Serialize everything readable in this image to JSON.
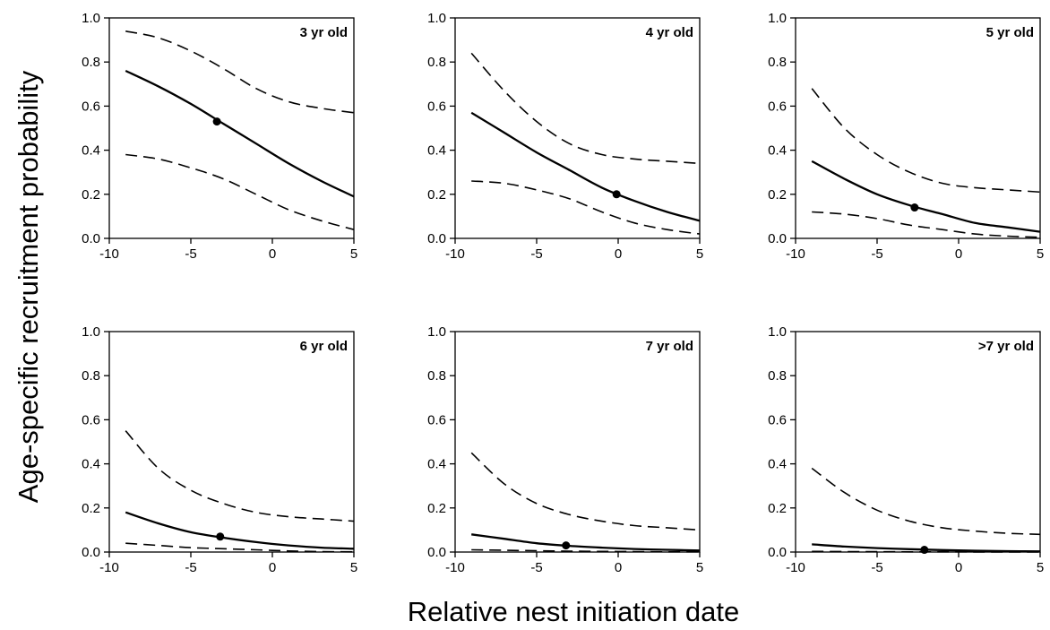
{
  "figure": {
    "ylabel": "Age-specific recruitment probability",
    "xlabel": "Relative nest initiation date"
  },
  "chart_data": [
    {
      "type": "line",
      "title": "3 yr old",
      "xlim": [
        -10,
        5
      ],
      "ylim": [
        0,
        1
      ],
      "xticks": [
        -10,
        -5,
        0,
        5
      ],
      "yticks": [
        0,
        0.2,
        0.4,
        0.6,
        0.8,
        1
      ],
      "xtick_labels": [
        "-10",
        "-5",
        "0",
        "5"
      ],
      "ytick_labels": [
        "0.0",
        "0.2",
        "0.4",
        "0.6",
        "0.8",
        "1.0"
      ],
      "series": [
        {
          "style": "solid",
          "x": [
            -9,
            -7,
            -5,
            -3,
            -1,
            1,
            3,
            5
          ],
          "y": [
            0.76,
            0.69,
            0.61,
            0.52,
            0.43,
            0.34,
            0.26,
            0.19
          ]
        },
        {
          "style": "dashed",
          "x": [
            -9,
            -7,
            -5,
            -3,
            -1,
            1,
            3,
            5
          ],
          "y": [
            0.94,
            0.91,
            0.85,
            0.77,
            0.68,
            0.62,
            0.59,
            0.57
          ]
        },
        {
          "style": "dashed",
          "x": [
            -9,
            -7,
            -5,
            -3,
            -1,
            1,
            3,
            5
          ],
          "y": [
            0.38,
            0.36,
            0.32,
            0.27,
            0.2,
            0.13,
            0.08,
            0.04
          ]
        },
        {
          "style": "point",
          "x": [
            -3.4
          ],
          "y": [
            0.53
          ]
        }
      ]
    },
    {
      "type": "line",
      "title": "4 yr old",
      "xlim": [
        -10,
        5
      ],
      "ylim": [
        0,
        1
      ],
      "xticks": [
        -10,
        -5,
        0,
        5
      ],
      "yticks": [
        0,
        0.2,
        0.4,
        0.6,
        0.8,
        1
      ],
      "xtick_labels": [
        "-10",
        "-5",
        "0",
        "5"
      ],
      "ytick_labels": [
        "0.0",
        "0.2",
        "0.4",
        "0.6",
        "0.8",
        "1.0"
      ],
      "series": [
        {
          "style": "solid",
          "x": [
            -9,
            -7,
            -5,
            -3,
            -1,
            1,
            3,
            5
          ],
          "y": [
            0.57,
            0.48,
            0.39,
            0.31,
            0.23,
            0.17,
            0.12,
            0.08
          ]
        },
        {
          "style": "dashed",
          "x": [
            -9,
            -7,
            -5,
            -3,
            -1,
            1,
            3,
            5
          ],
          "y": [
            0.84,
            0.67,
            0.53,
            0.43,
            0.38,
            0.36,
            0.35,
            0.34
          ]
        },
        {
          "style": "dashed",
          "x": [
            -9,
            -7,
            -5,
            -3,
            -1,
            1,
            3,
            5
          ],
          "y": [
            0.26,
            0.25,
            0.22,
            0.18,
            0.12,
            0.07,
            0.04,
            0.02
          ]
        },
        {
          "style": "point",
          "x": [
            -0.1
          ],
          "y": [
            0.2
          ]
        }
      ]
    },
    {
      "type": "line",
      "title": "5 yr old",
      "xlim": [
        -10,
        5
      ],
      "ylim": [
        0,
        1
      ],
      "xticks": [
        -10,
        -5,
        0,
        5
      ],
      "yticks": [
        0,
        0.2,
        0.4,
        0.6,
        0.8,
        1
      ],
      "xtick_labels": [
        "-10",
        "-5",
        "0",
        "5"
      ],
      "ytick_labels": [
        "0.0",
        "0.2",
        "0.4",
        "0.6",
        "0.8",
        "1.0"
      ],
      "series": [
        {
          "style": "solid",
          "x": [
            -9,
            -7,
            -5,
            -3,
            -1,
            1,
            3,
            5
          ],
          "y": [
            0.35,
            0.27,
            0.2,
            0.15,
            0.11,
            0.07,
            0.05,
            0.03
          ]
        },
        {
          "style": "dashed",
          "x": [
            -9,
            -7,
            -5,
            -3,
            -1,
            1,
            3,
            5
          ],
          "y": [
            0.68,
            0.5,
            0.38,
            0.3,
            0.25,
            0.23,
            0.22,
            0.21
          ]
        },
        {
          "style": "dashed",
          "x": [
            -9,
            -7,
            -5,
            -3,
            -1,
            1,
            3,
            5
          ],
          "y": [
            0.12,
            0.11,
            0.09,
            0.06,
            0.04,
            0.02,
            0.01,
            0.005
          ]
        },
        {
          "style": "point",
          "x": [
            -2.7
          ],
          "y": [
            0.14
          ]
        }
      ]
    },
    {
      "type": "line",
      "title": "6 yr old",
      "xlim": [
        -10,
        5
      ],
      "ylim": [
        0,
        1
      ],
      "xticks": [
        -10,
        -5,
        0,
        5
      ],
      "yticks": [
        0,
        0.2,
        0.4,
        0.6,
        0.8,
        1
      ],
      "xtick_labels": [
        "-10",
        "-5",
        "0",
        "5"
      ],
      "ytick_labels": [
        "0.0",
        "0.2",
        "0.4",
        "0.6",
        "0.8",
        "1.0"
      ],
      "series": [
        {
          "style": "solid",
          "x": [
            -9,
            -7,
            -5,
            -3,
            -1,
            1,
            3,
            5
          ],
          "y": [
            0.18,
            0.13,
            0.09,
            0.065,
            0.045,
            0.03,
            0.02,
            0.015
          ]
        },
        {
          "style": "dashed",
          "x": [
            -9,
            -7,
            -5,
            -3,
            -1,
            1,
            3,
            5
          ],
          "y": [
            0.55,
            0.38,
            0.28,
            0.22,
            0.18,
            0.16,
            0.15,
            0.14
          ]
        },
        {
          "style": "dashed",
          "x": [
            -9,
            -7,
            -5,
            -3,
            -1,
            1,
            3,
            5
          ],
          "y": [
            0.04,
            0.03,
            0.02,
            0.015,
            0.01,
            0.005,
            0.002,
            0.001
          ]
        },
        {
          "style": "point",
          "x": [
            -3.2
          ],
          "y": [
            0.07
          ]
        }
      ]
    },
    {
      "type": "line",
      "title": "7 yr old",
      "xlim": [
        -10,
        5
      ],
      "ylim": [
        0,
        1
      ],
      "xticks": [
        -10,
        -5,
        0,
        5
      ],
      "yticks": [
        0,
        0.2,
        0.4,
        0.6,
        0.8,
        1
      ],
      "xtick_labels": [
        "-10",
        "-5",
        "0",
        "5"
      ],
      "ytick_labels": [
        "0.0",
        "0.2",
        "0.4",
        "0.6",
        "0.8",
        "1.0"
      ],
      "series": [
        {
          "style": "solid",
          "x": [
            -9,
            -7,
            -5,
            -3,
            -1,
            1,
            3,
            5
          ],
          "y": [
            0.08,
            0.06,
            0.04,
            0.028,
            0.02,
            0.014,
            0.01,
            0.007
          ]
        },
        {
          "style": "dashed",
          "x": [
            -9,
            -7,
            -5,
            -3,
            -1,
            1,
            3,
            5
          ],
          "y": [
            0.45,
            0.31,
            0.22,
            0.17,
            0.14,
            0.12,
            0.11,
            0.1
          ]
        },
        {
          "style": "dashed",
          "x": [
            -9,
            -7,
            -5,
            -3,
            -1,
            1,
            3,
            5
          ],
          "y": [
            0.01,
            0.008,
            0.006,
            0.004,
            0.003,
            0.002,
            0.001,
            0.001
          ]
        },
        {
          "style": "point",
          "x": [
            -3.2
          ],
          "y": [
            0.03
          ]
        }
      ]
    },
    {
      "type": "line",
      "title": ">7 yr old",
      "xlim": [
        -10,
        5
      ],
      "ylim": [
        0,
        1
      ],
      "xticks": [
        -10,
        -5,
        0,
        5
      ],
      "yticks": [
        0,
        0.2,
        0.4,
        0.6,
        0.8,
        1
      ],
      "xtick_labels": [
        "-10",
        "-5",
        "0",
        "5"
      ],
      "ytick_labels": [
        "0.0",
        "0.2",
        "0.4",
        "0.6",
        "0.8",
        "1.0"
      ],
      "series": [
        {
          "style": "solid",
          "x": [
            -9,
            -7,
            -5,
            -3,
            -1,
            1,
            3,
            5
          ],
          "y": [
            0.035,
            0.025,
            0.018,
            0.013,
            0.009,
            0.006,
            0.004,
            0.003
          ]
        },
        {
          "style": "dashed",
          "x": [
            -9,
            -7,
            -5,
            -3,
            -1,
            1,
            3,
            5
          ],
          "y": [
            0.38,
            0.27,
            0.19,
            0.14,
            0.11,
            0.095,
            0.085,
            0.08
          ]
        },
        {
          "style": "dashed",
          "x": [
            -9,
            -7,
            -5,
            -3,
            -1,
            1,
            3,
            5
          ],
          "y": [
            0.003,
            0.002,
            0.0015,
            0.001,
            0.001,
            0.0005,
            0.0005,
            0.0005
          ]
        },
        {
          "style": "point",
          "x": [
            -2.1
          ],
          "y": [
            0.01
          ]
        }
      ]
    }
  ]
}
